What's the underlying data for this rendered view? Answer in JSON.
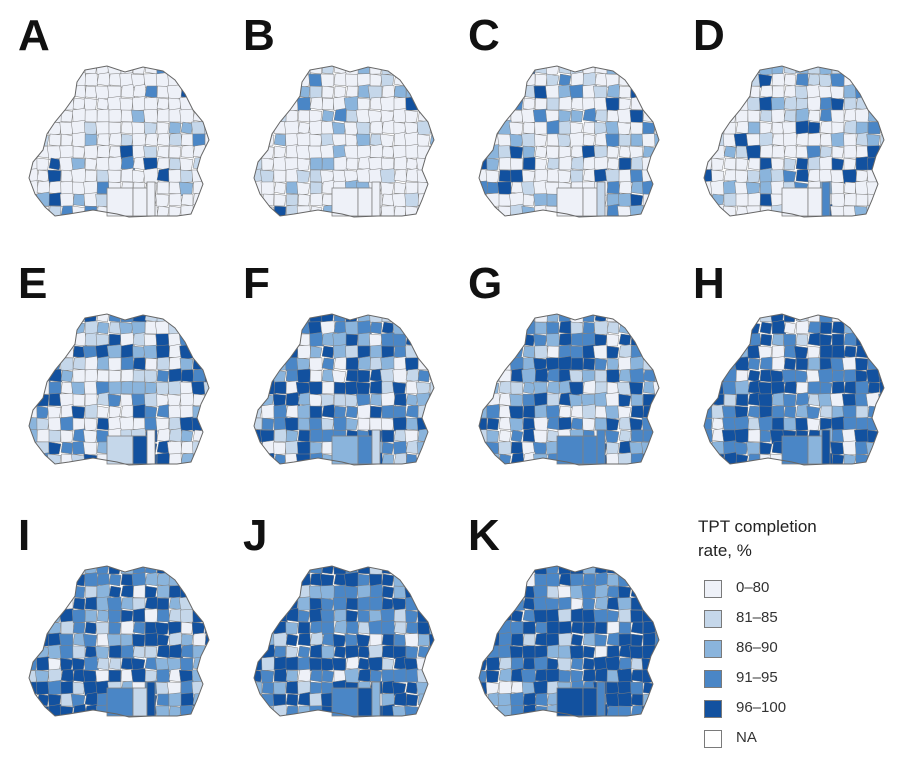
{
  "panels": [
    {
      "letter": "A",
      "mix": [
        0.78,
        0.08,
        0.06,
        0.04,
        0.04
      ]
    },
    {
      "letter": "B",
      "mix": [
        0.72,
        0.14,
        0.08,
        0.04,
        0.02
      ]
    },
    {
      "letter": "C",
      "mix": [
        0.55,
        0.13,
        0.1,
        0.1,
        0.12
      ]
    },
    {
      "letter": "D",
      "mix": [
        0.52,
        0.14,
        0.11,
        0.11,
        0.12
      ]
    },
    {
      "letter": "E",
      "mix": [
        0.33,
        0.16,
        0.16,
        0.17,
        0.18
      ]
    },
    {
      "letter": "F",
      "mix": [
        0.2,
        0.14,
        0.18,
        0.22,
        0.26
      ]
    },
    {
      "letter": "G",
      "mix": [
        0.16,
        0.14,
        0.2,
        0.24,
        0.26
      ]
    },
    {
      "letter": "H",
      "mix": [
        0.14,
        0.1,
        0.16,
        0.25,
        0.35
      ]
    },
    {
      "letter": "I",
      "mix": [
        0.08,
        0.1,
        0.16,
        0.25,
        0.41
      ]
    },
    {
      "letter": "J",
      "mix": [
        0.07,
        0.1,
        0.15,
        0.24,
        0.44
      ]
    },
    {
      "letter": "K",
      "mix": [
        0.06,
        0.08,
        0.13,
        0.24,
        0.49
      ]
    }
  ],
  "legend": {
    "title_line1": "TPT completion",
    "title_line2": "rate, %",
    "items": [
      {
        "label": "0–80",
        "color": "#eef1f8"
      },
      {
        "label": "81–85",
        "color": "#c5d7ea"
      },
      {
        "label": "86–90",
        "color": "#8ab4dc"
      },
      {
        "label": "91–95",
        "color": "#4a86c6"
      },
      {
        "label": "96–100",
        "color": "#12519f"
      },
      {
        "label": "NA",
        "color": "#ffffff"
      }
    ]
  }
}
